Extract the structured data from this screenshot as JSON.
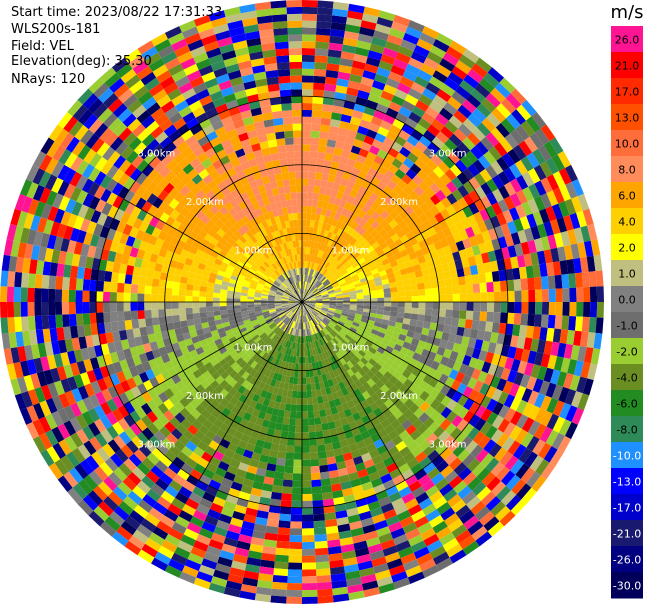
{
  "header": {
    "start_time": "Start time: 2023/08/22 17:31:33",
    "instrument": "WLS200s-181",
    "field": "Field: VEL",
    "elevation": "Elevation(deg): 35.30",
    "nrays": "NRays: 120"
  },
  "chart_data": {
    "type": "heatmap",
    "subtype": "polar-ppi",
    "field": "VEL",
    "units": "m/s",
    "nrays": 120,
    "elevation_deg": 35.3,
    "range_rings_km": [
      1.0,
      2.0,
      3.0
    ],
    "ring_labels": [
      "1.00km",
      "2.00km",
      "3.00km"
    ],
    "max_range_km": 4.4,
    "colorbar": {
      "label": "m/s",
      "ticks": [
        "26.0",
        "21.0",
        "17.0",
        "13.0",
        "10.0",
        "8.0",
        "6.0",
        "4.0",
        "2.0",
        "1.0",
        "0.0",
        "-1.0",
        "-2.0",
        "-4.0",
        "-6.0",
        "-8.0",
        "-10.0",
        "-13.0",
        "-17.0",
        "-21.0",
        "-26.0",
        "-30.0"
      ],
      "colors": [
        "#ff1493",
        "#ff0000",
        "#ff2a00",
        "#ff5000",
        "#ff6d3a",
        "#ff8c5a",
        "#ffa500",
        "#ffd000",
        "#ffff00",
        "#bfbf7f",
        "#808080",
        "#6e6e6e",
        "#9acd32",
        "#6b8e23",
        "#228b22",
        "#2e8b57",
        "#1e90ff",
        "#0000ff",
        "#0000cd",
        "#191970",
        "#000080",
        "#00005a"
      ]
    },
    "velocity_pattern": {
      "north_sector_mps": 4.0,
      "south_sector_mps": -6.0,
      "near_field_mps": 0.0,
      "noise_beyond_km": 3.0
    }
  }
}
